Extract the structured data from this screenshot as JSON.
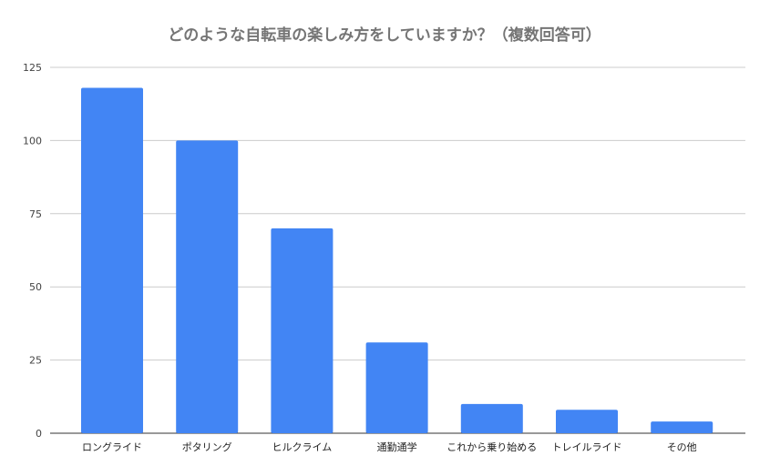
{
  "chart_data": {
    "type": "bar",
    "title": "どのような自転車の楽しみ方をしていますか？（複数回答可）",
    "xlabel": "",
    "ylabel": "",
    "categories": [
      "ロングライド",
      "ポタリング",
      "ヒルクライム",
      "通勤通学",
      "これから乗り始める",
      "トレイルライド",
      "その他"
    ],
    "values": [
      118,
      100,
      70,
      31,
      10,
      8,
      4
    ],
    "ylim": [
      0,
      125
    ],
    "yticks": [
      0,
      25,
      50,
      75,
      100,
      125
    ],
    "grid": true,
    "legend": "none",
    "bar_color": "#4285f4"
  }
}
